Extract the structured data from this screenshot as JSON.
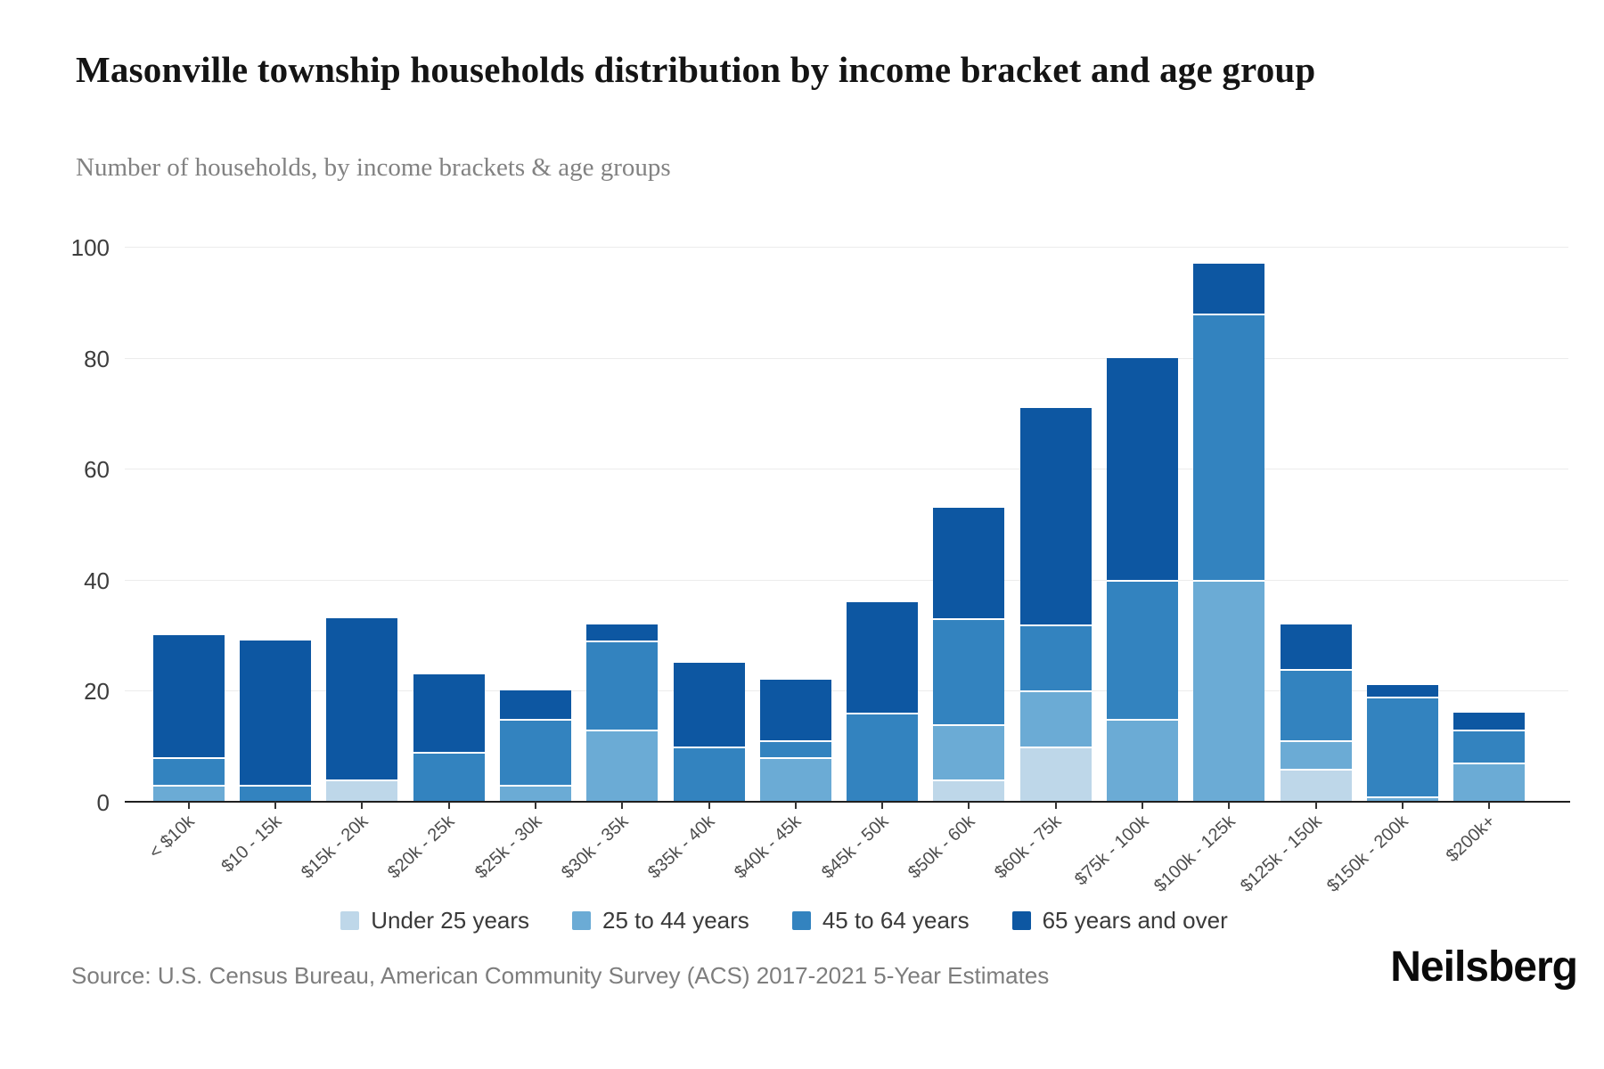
{
  "chart_data": {
    "type": "bar",
    "stacked": true,
    "title": "Masonville township households distribution by income bracket and age group",
    "subtitle": "Number of households, by income brackets & age groups",
    "categories": [
      "< $10k",
      "$10 - 15k",
      "$15k - 20k",
      "$20k - 25k",
      "$25k - 30k",
      "$30k - 35k",
      "$35k - 40k",
      "$40k - 45k",
      "$45k - 50k",
      "$50k - 60k",
      "$60k - 75k",
      "$75k - 100k",
      "$100k - 125k",
      "$125k - 150k",
      "$150k - 200k",
      "$200k+"
    ],
    "series": [
      {
        "name": "Under 25 years",
        "color": "#bed7e9",
        "values": [
          0,
          0,
          4,
          0,
          0,
          0,
          0,
          0,
          0,
          4,
          10,
          0,
          0,
          6,
          0,
          0
        ]
      },
      {
        "name": "25 to 44 years",
        "color": "#6babd5",
        "values": [
          3,
          0,
          0,
          0,
          3,
          13,
          0,
          8,
          0,
          10,
          10,
          15,
          40,
          5,
          1,
          7
        ]
      },
      {
        "name": "45 to 64 years",
        "color": "#3383bf",
        "values": [
          5,
          3,
          0,
          9,
          12,
          16,
          10,
          3,
          16,
          19,
          12,
          25,
          48,
          13,
          18,
          6
        ]
      },
      {
        "name": "65 years and over",
        "color": "#0d57a2",
        "values": [
          22,
          26,
          29,
          14,
          5,
          3,
          15,
          11,
          20,
          20,
          39,
          40,
          9,
          8,
          2,
          3
        ]
      }
    ],
    "totals": [
      30,
      29,
      33,
      23,
      20,
      32,
      25,
      22,
      36,
      53,
      71,
      80,
      97,
      32,
      21,
      16
    ],
    "ylim": [
      0,
      100
    ],
    "yticks": [
      0,
      20,
      40,
      60,
      80,
      100
    ],
    "grid": true,
    "legend_position": "bottom"
  },
  "footer": {
    "source": "Source: U.S. Census Bureau, American Community Survey (ACS) 2017-2021 5-Year Estimates",
    "logo": "Neilsberg"
  }
}
